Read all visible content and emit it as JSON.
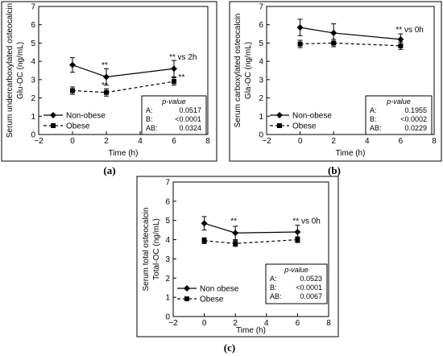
{
  "chart_data": [
    {
      "panel_label": "(a)",
      "type": "line",
      "ylabel": [
        "Serum undercarboxylated osteocalcin",
        "Glu-OC  (ng/mL)"
      ],
      "xlabel": "Time (h)",
      "xlim": [
        -2,
        8
      ],
      "ylim": [
        0,
        7
      ],
      "xticks": [
        "−2",
        "0",
        "2",
        "4",
        "6",
        "8"
      ],
      "yticks": [
        "0",
        "1",
        "2",
        "3",
        "4",
        "5",
        "6",
        "7"
      ],
      "x": [
        0,
        2,
        6
      ],
      "series": [
        {
          "name": "Non-obese",
          "values": [
            3.8,
            3.15,
            3.6
          ],
          "err": [
            0.4,
            0.45,
            0.45
          ],
          "style": "solid",
          "marker": "diamond"
        },
        {
          "name": "Obese",
          "values": [
            2.4,
            2.3,
            2.9
          ],
          "err": [
            0.2,
            0.2,
            0.2
          ],
          "style": "dashed",
          "marker": "square"
        }
      ],
      "annotations": [
        {
          "text": "**",
          "x": 2,
          "y": 3.65
        },
        {
          "text": "**",
          "x": 2,
          "y": 2.55
        },
        {
          "text": "**  vs 2h",
          "x": 6,
          "y": 4.1
        },
        {
          "text": "**",
          "x": 6.55,
          "y": 3.0
        }
      ],
      "pvalue": {
        "title": "p-value",
        "rows": [
          [
            "A:",
            "0.0517"
          ],
          [
            "B:",
            "<0.0001"
          ],
          [
            "AB:",
            "0.0324"
          ]
        ]
      }
    },
    {
      "panel_label": "(b)",
      "type": "line",
      "ylabel": [
        "Serum carboxylated osteocalcin",
        "Gla-OC  (ng/mL)"
      ],
      "xlabel": "Time (h)",
      "xlim": [
        -2,
        8
      ],
      "ylim": [
        0,
        7
      ],
      "xticks": [
        "−2",
        "0",
        "2",
        "4",
        "6",
        "8"
      ],
      "yticks": [
        "0",
        "1",
        "2",
        "3",
        "4",
        "5",
        "6",
        "7"
      ],
      "x": [
        0,
        2,
        6
      ],
      "series": [
        {
          "name": "Non-obese",
          "values": [
            5.85,
            5.55,
            5.2
          ],
          "err": [
            0.45,
            0.5,
            0.3
          ],
          "style": "solid",
          "marker": "diamond"
        },
        {
          "name": "Obese",
          "values": [
            4.95,
            5.0,
            4.85
          ],
          "err": [
            0.2,
            0.2,
            0.2
          ],
          "style": "dashed",
          "marker": "square"
        }
      ],
      "annotations": [
        {
          "text": "**  vs 0h",
          "x": 6,
          "y": 5.6
        }
      ],
      "pvalue": {
        "title": "p-value",
        "rows": [
          [
            "A:",
            "0.1955"
          ],
          [
            "B:",
            "<0.0002"
          ],
          [
            "AB:",
            "0.0229"
          ]
        ]
      }
    },
    {
      "panel_label": "(c)",
      "type": "line",
      "ylabel": [
        "Serum total osteocalcin",
        "Total-OC  (ng/mL)"
      ],
      "xlabel": "Time (h)",
      "xlim": [
        -2,
        8
      ],
      "ylim": [
        0,
        7
      ],
      "xticks": [
        "−2",
        "0",
        "2",
        "4",
        "6",
        "8"
      ],
      "yticks": [
        "0",
        "1",
        "2",
        "3",
        "4",
        "5",
        "6",
        "7"
      ],
      "x": [
        0,
        2,
        6
      ],
      "series": [
        {
          "name": "Non obese",
          "values": [
            4.85,
            4.35,
            4.4
          ],
          "err": [
            0.35,
            0.35,
            0.35
          ],
          "style": "solid",
          "marker": "diamond"
        },
        {
          "name": "Obese",
          "values": [
            3.95,
            3.8,
            4.0
          ],
          "err": [
            0.15,
            0.15,
            0.15
          ],
          "style": "dashed",
          "marker": "square"
        }
      ],
      "annotations": [
        {
          "text": "**",
          "x": 2,
          "y": 4.85
        },
        {
          "text": "**  vs 0h",
          "x": 6,
          "y": 4.85
        }
      ],
      "pvalue": {
        "title": "p-value",
        "rows": [
          [
            "A:",
            "0.0523"
          ],
          [
            "B:",
            "<0.0001"
          ],
          [
            "AB:",
            "0.0067"
          ]
        ]
      }
    }
  ]
}
